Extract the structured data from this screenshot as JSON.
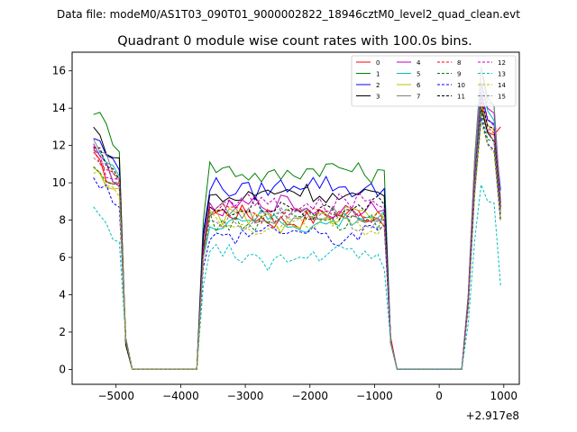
{
  "chart_data": {
    "type": "line",
    "suptitle": "Data file: modeM0/AS1T03_090T01_9000002822_18946cztM0_level2_quad_clean.evt",
    "title": "Quadrant 0 module wise count rates with 100.0s bins.",
    "xlabel": "",
    "ylabel": "",
    "offset_label": "+2.917e8",
    "xlim": [
      -5680,
      1240
    ],
    "ylim": [
      -0.8,
      17.0
    ],
    "xticks": [
      -5000,
      -4000,
      -3000,
      -2000,
      -1000,
      0,
      1000
    ],
    "xtick_labels": [
      "−5000",
      "−4000",
      "−3000",
      "−2000",
      "−1000",
      "0",
      "1000"
    ],
    "yticks": [
      0,
      2,
      4,
      6,
      8,
      10,
      12,
      14,
      16
    ],
    "ytick_labels": [
      "0",
      "2",
      "4",
      "6",
      "8",
      "10",
      "12",
      "14",
      "16"
    ],
    "legend_position": "top-right",
    "series": [
      {
        "name": "0",
        "color": "#ff0000",
        "dash": "solid",
        "level": 8.2,
        "start": 11.3,
        "peak": 14.2,
        "end": 13.0
      },
      {
        "name": "1",
        "color": "#008000",
        "dash": "solid",
        "level": 10.6,
        "start": 14.0,
        "peak": 16.2,
        "end": 8.9
      },
      {
        "name": "2",
        "color": "#0000ff",
        "dash": "solid",
        "level": 9.8,
        "start": 12.5,
        "peak": 14.8,
        "end": 9.6
      },
      {
        "name": "3",
        "color": "#000000",
        "dash": "solid",
        "level": 9.4,
        "start": 12.9,
        "peak": 14.0,
        "end": 8.0
      },
      {
        "name": "4",
        "color": "#bf00bf",
        "dash": "solid",
        "level": 8.7,
        "start": 11.8,
        "peak": 15.4,
        "end": 9.0
      },
      {
        "name": "5",
        "color": "#00bfbf",
        "dash": "solid",
        "level": 7.9,
        "start": 12.1,
        "peak": 15.2,
        "end": 8.5
      },
      {
        "name": "6",
        "color": "#bfbf00",
        "dash": "solid",
        "level": 8.0,
        "start": 11.0,
        "peak": 14.3,
        "end": 8.2
      },
      {
        "name": "7",
        "color": "#808080",
        "dash": "solid",
        "level": 8.3,
        "start": 12.3,
        "peak": 16.1,
        "end": 9.1
      },
      {
        "name": "8",
        "color": "#ff0000",
        "dash": "dashed",
        "level": 8.5,
        "start": 11.7,
        "peak": 14.6,
        "end": 8.6
      },
      {
        "name": "9",
        "color": "#008000",
        "dash": "dashed",
        "level": 8.0,
        "start": 11.3,
        "peak": 13.8,
        "end": 8.3
      },
      {
        "name": "10",
        "color": "#0000ff",
        "dash": "dashed",
        "level": 7.3,
        "start": 10.5,
        "peak": 13.5,
        "end": 7.9
      },
      {
        "name": "11",
        "color": "#000000",
        "dash": "dashed",
        "level": 8.6,
        "start": 11.9,
        "peak": 14.5,
        "end": 8.7
      },
      {
        "name": "12",
        "color": "#bf00bf",
        "dash": "dashed",
        "level": 8.8,
        "start": 11.6,
        "peak": 14.9,
        "end": 8.8
      },
      {
        "name": "13",
        "color": "#00bfbf",
        "dash": "dashed",
        "level": 6.0,
        "start": 8.3,
        "peak": 9.9,
        "end": 4.5
      },
      {
        "name": "14",
        "color": "#bfbf00",
        "dash": "dashed",
        "level": 7.8,
        "start": 10.8,
        "peak": 13.2,
        "end": 8.0
      },
      {
        "name": "15",
        "color": "#808080",
        "dash": "dashed",
        "level": 8.1,
        "start": 11.4,
        "peak": 14.1,
        "end": 8.4
      }
    ],
    "segments": {
      "bin": 100,
      "high": [
        [
          -5350,
          -4950
        ],
        [
          -3550,
          -850
        ],
        [
          550,
          950
        ]
      ],
      "ramp_down": [
        [
          -4950,
          -4750
        ],
        [
          -850,
          -650
        ]
      ],
      "ramp_up": [
        [
          -3750,
          -3550
        ],
        [
          350,
          550
        ]
      ],
      "zero": [
        [
          -4750,
          -3750
        ],
        [
          -650,
          350
        ]
      ]
    }
  }
}
